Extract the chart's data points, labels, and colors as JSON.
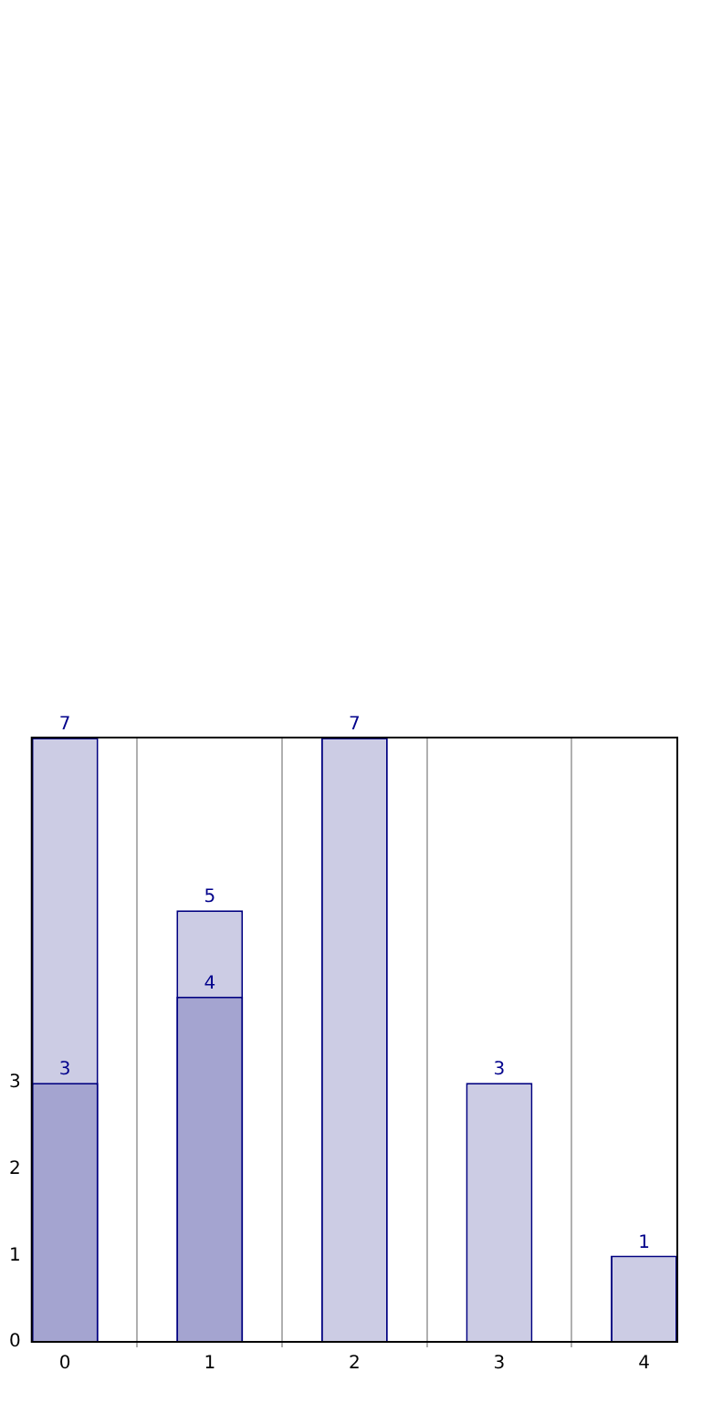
{
  "chart_data": {
    "type": "bar",
    "x": [
      0,
      1,
      2,
      3,
      4
    ],
    "xlim": [
      -0.23,
      4.23
    ],
    "xticks": [
      0,
      1,
      2,
      3,
      4
    ],
    "ylim": [
      0,
      7
    ],
    "yticks": [
      0,
      1,
      2,
      3
    ],
    "grid": "x",
    "data_labels": true,
    "series": [
      {
        "color": "#cccce4",
        "values": [
          7,
          5,
          7,
          3,
          1
        ]
      },
      {
        "color": "#a4a4d0",
        "values": [
          3,
          4,
          null,
          null,
          null
        ]
      }
    ]
  }
}
